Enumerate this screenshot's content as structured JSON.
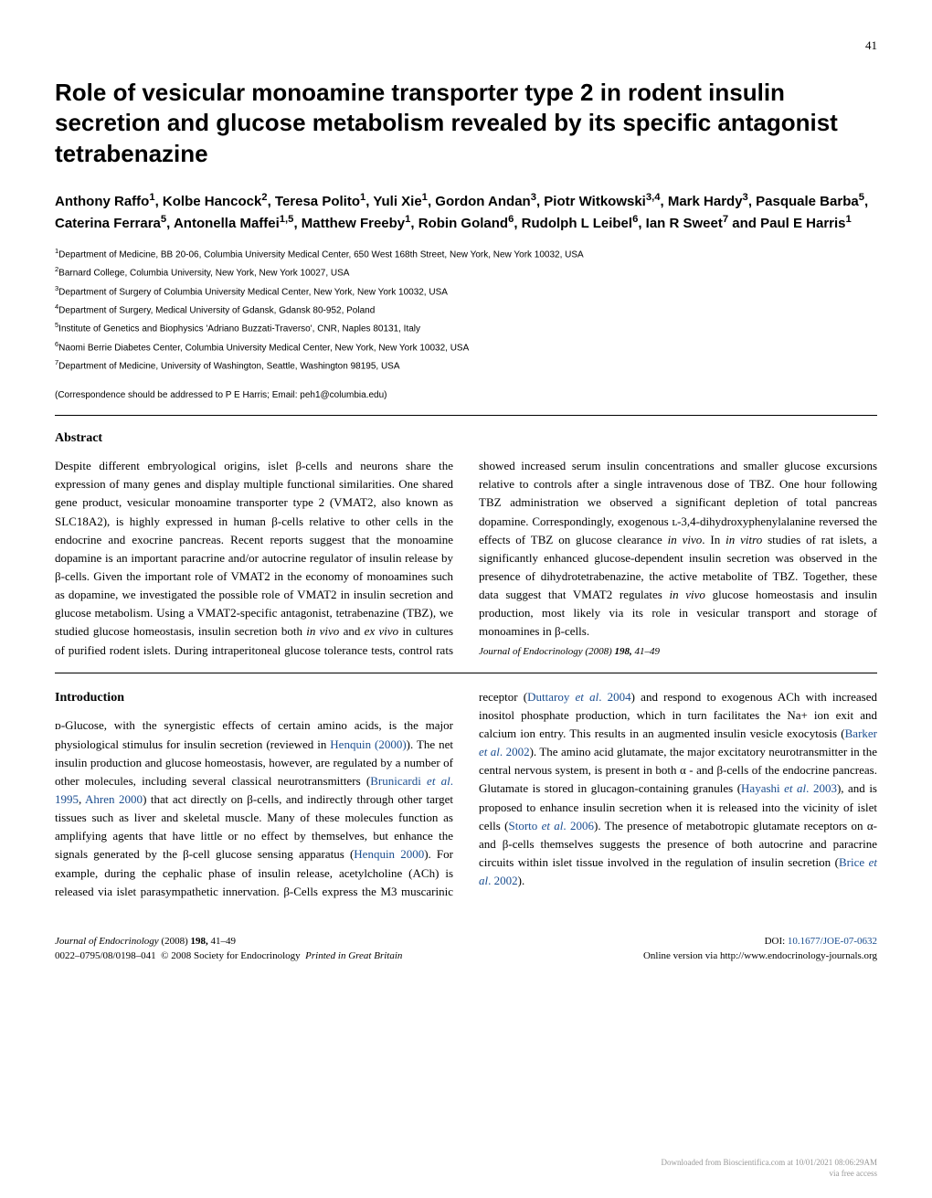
{
  "page_number": "41",
  "title": "Role of vesicular monoamine transporter type 2 in rodent insulin secretion and glucose metabolism revealed by its specific antagonist tetrabenazine",
  "authors_html": "Anthony Raffo<sup>1</sup>, Kolbe Hancock<sup>2</sup>, Teresa Polito<sup>1</sup>, Yuli Xie<sup>1</sup>, Gordon Andan<sup>3</sup>, Piotr Witkowski<sup>3,4</sup>, Mark Hardy<sup>3</sup>, Pasquale Barba<sup>5</sup>, Caterina Ferrara<sup>5</sup>, Antonella Maffei<sup>1,5</sup>, Matthew Freeby<sup>1</sup>, Robin Goland<sup>6</sup>, Rudolph L Leibel<sup>6</sup>, Ian R Sweet<sup>7</sup> and <b>Paul E Harris<sup>1</sup></b>",
  "affiliations": [
    "<sup>1</sup>Department of Medicine, BB 20-06, Columbia University Medical Center, 650 West 168th Street, New York, New York 10032, USA",
    "<sup>2</sup>Barnard College, Columbia University, New York, New York 10027, USA",
    "<sup>3</sup>Department of Surgery of Columbia University Medical Center, New York, New York 10032, USA",
    "<sup>4</sup>Department of Surgery, Medical University of Gdansk, Gdansk 80-952, Poland",
    "<sup>5</sup>Institute of Genetics and Biophysics 'Adriano Buzzati-Traverso', CNR, Naples 80131, Italy",
    "<sup>6</sup>Naomi Berrie Diabetes Center, Columbia University Medical Center, New York, New York 10032, USA",
    "<sup>7</sup>Department of Medicine, University of Washington, Seattle, Washington 98195, USA"
  ],
  "correspondence": "(Correspondence should be addressed to P E Harris; Email: peh1@columbia.edu)",
  "abstract_heading": "Abstract",
  "abstract_body": "Despite different embryological origins, islet β-cells and neurons share the expression of many genes and display multiple functional similarities. One shared gene product, vesicular monoamine transporter type 2 (VMAT2, also known as SLC18A2), is highly expressed in human β-cells relative to other cells in the endocrine and exocrine pancreas. Recent reports suggest that the monoamine dopamine is an important paracrine and/or autocrine regulator of insulin release by β-cells. Given the important role of VMAT2 in the economy of monoamines such as dopamine, we investigated the possible role of VMAT2 in insulin secretion and glucose metabolism. Using a VMAT2-specific antagonist, tetrabenazine (TBZ), we studied glucose homeostasis, insulin secretion both <i>in vivo</i> and <i>ex vivo</i> in cultures of purified rodent islets. During intraperitoneal glucose tolerance tests, control rats showed increased serum insulin concentrations and smaller glucose excursions relative to controls after a single intravenous dose of TBZ. One hour following TBZ administration we observed a significant depletion of total pancreas dopamine. Correspondingly, exogenous ʟ-3,4-dihydroxyphenylalanine reversed the effects of TBZ on glucose clearance <i>in vivo</i>. In <i>in vitro</i> studies of rat islets, a significantly enhanced glucose-dependent insulin secretion was observed in the presence of dihydrotetrabenazine, the active metabolite of TBZ. Together, these data suggest that VMAT2 regulates <i>in vivo</i> glucose homeostasis and insulin production, most likely via its role in vesicular transport and storage of monoamines in β-cells.",
  "abstract_journal_line": "<i>Journal of Endocrinology</i> (2008) <b>198,</b> 41–49",
  "intro_heading": "Introduction",
  "intro_body": "ᴅ-Glucose, with the synergistic effects of certain amino acids, is the major physiological stimulus for insulin secretion (reviewed in <span class='link'>Henquin (2000)</span>). The net insulin production and glucose homeostasis, however, are regulated by a number of other molecules, including several classical neurotransmitters (<span class='link'>Brunicardi <i>et al</i>. 1995</span>, <span class='link'>Ahren 2000</span>) that act directly on β-cells, and indirectly through other target tissues such as liver and skeletal muscle. Many of these molecules function as amplifying agents that have little or no effect by themselves, but enhance the signals generated by the β-cell glucose sensing apparatus (<span class='link'>Henquin 2000</span>). For example, during the cephalic phase of insulin release, acetylcholine (ACh) is released via islet parasympathetic innervation. β-Cells express the M3 muscarinic receptor (<span class='link'>Duttaroy <i>et al</i>. 2004</span>) and respond to exogenous ACh with increased inositol phosphate production, which in turn facilitates the Na+ ion exit and calcium ion entry. This results in an augmented insulin vesicle exocytosis (<span class='link'>Barker <i>et al</i>. 2002</span>). The amino acid glutamate, the major excitatory neurotransmitter in the central nervous system, is present in both α - and β-cells of the endocrine pancreas. Glutamate is stored in glucagon-containing granules (<span class='link'>Hayashi <i>et al</i>. 2003</span>), and is proposed to enhance insulin secretion when it is released into the vicinity of islet cells (<span class='link'>Storto <i>et al</i>. 2006</span>). The presence of metabotropic glutamate receptors on α- and β-cells themselves suggests the presence of both autocrine and paracrine circuits within islet tissue involved in the regulation of insulin secretion (<span class='link'>Brice <i>et al</i>. 2002</span>).",
  "footer": {
    "left_line1": "<i>Journal of Endocrinology</i> (2008) <b>198,</b> 41–49",
    "left_line2": "0022–0795/08/0198–041 &nbsp;© 2008 Society for Endocrinology &nbsp;<i>Printed in Great Britain</i>",
    "right_line1": "DOI: <span class='link'>10.1677/JOE-07-0632</span>",
    "right_line2": "Online version via http://www.endocrinology-journals.org"
  },
  "watermark": {
    "line1": "Downloaded from Bioscientifica.com at 10/01/2021 08:06:29AM",
    "line2": "via free access"
  }
}
